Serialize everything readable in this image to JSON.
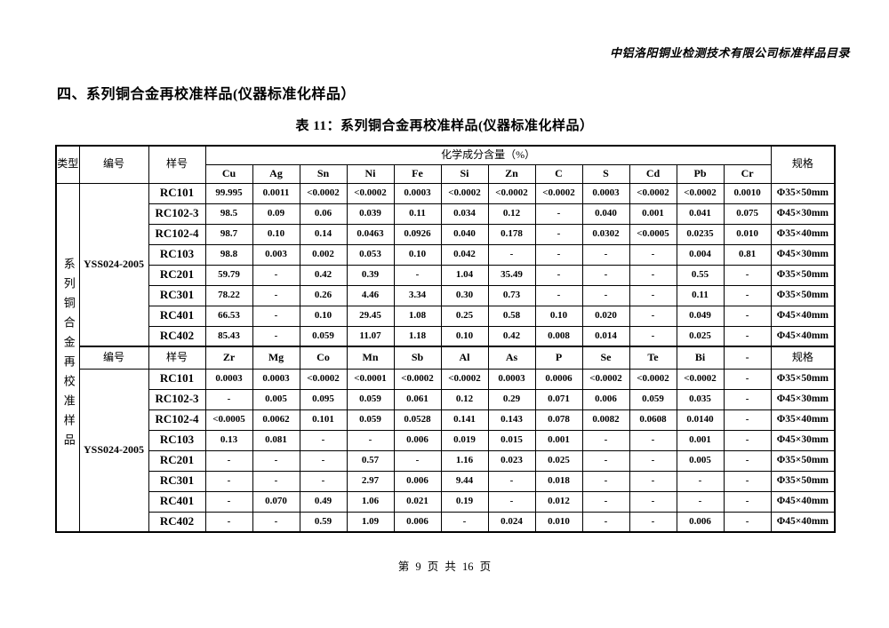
{
  "page": {
    "header_right": "中铝洛阳铜业检测技术有限公司标准样品目录",
    "section_heading": "四、系列铜合金再校准样品(仪器标准化样品）",
    "table_title": "表 11：系列铜合金再校准样品(仪器标准化样品）",
    "footer": "第 9 页 共 16 页"
  },
  "table": {
    "col_type": "类型",
    "col_bianhao": "编号",
    "col_yanghao": "样号",
    "chem_header": "化学成分含量（%）",
    "col_spec": "规格",
    "type_vertical": "系列铜合金再校准样品",
    "sections": [
      {
        "batch": "YSS024-2005",
        "elements": [
          "Cu",
          "Ag",
          "Sn",
          "Ni",
          "Fe",
          "Si",
          "Zn",
          "C",
          "S",
          "Cd",
          "Pb",
          "Cr"
        ],
        "rows": [
          {
            "id": "RC101",
            "values": [
              "99.995",
              "0.0011",
              "<0.0002",
              "<0.0002",
              "0.0003",
              "<0.0002",
              "<0.0002",
              "<0.0002",
              "0.0003",
              "<0.0002",
              "<0.0002",
              "0.0010"
            ],
            "spec": "Φ35×50mm"
          },
          {
            "id": "RC102-3",
            "values": [
              "98.5",
              "0.09",
              "0.06",
              "0.039",
              "0.11",
              "0.034",
              "0.12",
              "-",
              "0.040",
              "0.001",
              "0.041",
              "0.075"
            ],
            "spec": "Φ45×30mm"
          },
          {
            "id": "RC102-4",
            "values": [
              "98.7",
              "0.10",
              "0.14",
              "0.0463",
              "0.0926",
              "0.040",
              "0.178",
              "-",
              "0.0302",
              "<0.0005",
              "0.0235",
              "0.010"
            ],
            "spec": "Φ35×40mm"
          },
          {
            "id": "RC103",
            "values": [
              "98.8",
              "0.003",
              "0.002",
              "0.053",
              "0.10",
              "0.042",
              "-",
              "-",
              "-",
              "-",
              "0.004",
              "0.81"
            ],
            "spec": "Φ45×30mm"
          },
          {
            "id": "RC201",
            "values": [
              "59.79",
              "-",
              "0.42",
              "0.39",
              "-",
              "1.04",
              "35.49",
              "-",
              "-",
              "-",
              "0.55",
              "-"
            ],
            "spec": "Φ35×50mm"
          },
          {
            "id": "RC301",
            "values": [
              "78.22",
              "-",
              "0.26",
              "4.46",
              "3.34",
              "0.30",
              "0.73",
              "-",
              "-",
              "-",
              "0.11",
              "-"
            ],
            "spec": "Φ35×50mm"
          },
          {
            "id": "RC401",
            "values": [
              "66.53",
              "-",
              "0.10",
              "29.45",
              "1.08",
              "0.25",
              "0.58",
              "0.10",
              "0.020",
              "-",
              "0.049",
              "-"
            ],
            "spec": "Φ45×40mm"
          },
          {
            "id": "RC402",
            "values": [
              "85.43",
              "-",
              "0.059",
              "11.07",
              "1.18",
              "0.10",
              "0.42",
              "0.008",
              "0.014",
              "-",
              "0.025",
              "-"
            ],
            "spec": "Φ45×40mm"
          }
        ]
      },
      {
        "batch": "YSS024-2005",
        "elements": [
          "Zr",
          "Mg",
          "Co",
          "Mn",
          "Sb",
          "Al",
          "As",
          "P",
          "Se",
          "Te",
          "Bi",
          "-"
        ],
        "rows": [
          {
            "id": "RC101",
            "values": [
              "0.0003",
              "0.0003",
              "<0.0002",
              "<0.0001",
              "<0.0002",
              "<0.0002",
              "0.0003",
              "0.0006",
              "<0.0002",
              "<0.0002",
              "<0.0002",
              "-"
            ],
            "spec": "Φ35×50mm"
          },
          {
            "id": "RC102-3",
            "values": [
              "-",
              "0.005",
              "0.095",
              "0.059",
              "0.061",
              "0.12",
              "0.29",
              "0.071",
              "0.006",
              "0.059",
              "0.035",
              "-"
            ],
            "spec": "Φ45×30mm"
          },
          {
            "id": "RC102-4",
            "values": [
              "<0.0005",
              "0.0062",
              "0.101",
              "0.059",
              "0.0528",
              "0.141",
              "0.143",
              "0.078",
              "0.0082",
              "0.0608",
              "0.0140",
              "-"
            ],
            "spec": "Φ35×40mm"
          },
          {
            "id": "RC103",
            "values": [
              "0.13",
              "0.081",
              "-",
              "-",
              "0.006",
              "0.019",
              "0.015",
              "0.001",
              "-",
              "-",
              "0.001",
              "-"
            ],
            "spec": "Φ45×30mm"
          },
          {
            "id": "RC201",
            "values": [
              "-",
              "-",
              "-",
              "0.57",
              "-",
              "1.16",
              "0.023",
              "0.025",
              "-",
              "-",
              "0.005",
              "-"
            ],
            "spec": "Φ35×50mm"
          },
          {
            "id": "RC301",
            "values": [
              "-",
              "-",
              "-",
              "2.97",
              "0.006",
              "9.44",
              "-",
              "0.018",
              "-",
              "-",
              "-",
              "-"
            ],
            "spec": "Φ35×50mm"
          },
          {
            "id": "RC401",
            "values": [
              "-",
              "0.070",
              "0.49",
              "1.06",
              "0.021",
              "0.19",
              "-",
              "0.012",
              "-",
              "-",
              "-",
              "-"
            ],
            "spec": "Φ45×40mm"
          },
          {
            "id": "RC402",
            "values": [
              "-",
              "-",
              "0.59",
              "1.09",
              "0.006",
              "-",
              "0.024",
              "0.010",
              "-",
              "-",
              "0.006",
              "-"
            ],
            "spec": "Φ45×40mm"
          }
        ]
      }
    ]
  }
}
